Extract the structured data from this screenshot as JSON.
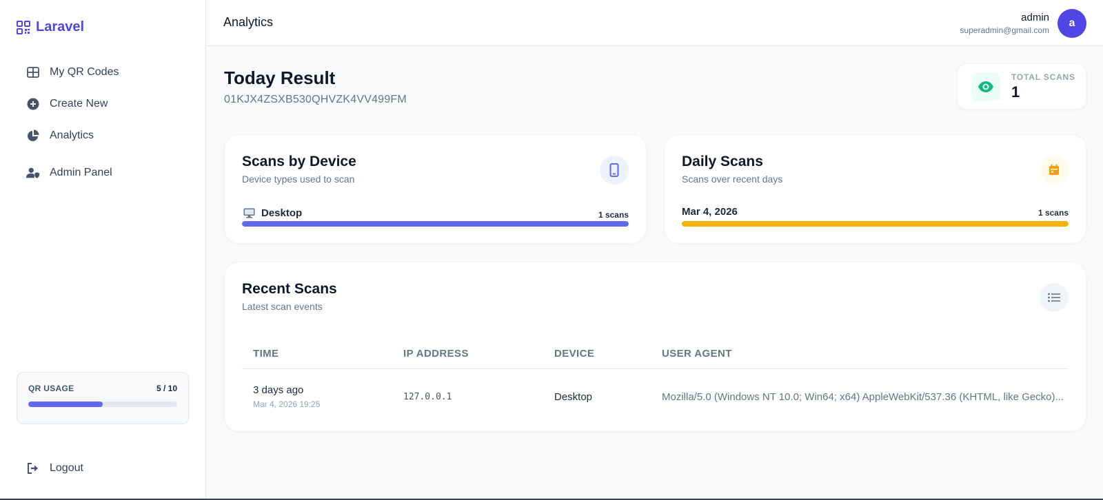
{
  "brand": {
    "name": "Laravel",
    "icon": "qr-code-icon"
  },
  "sidebar": {
    "items": [
      {
        "label": "My QR Codes",
        "icon": "grid-icon"
      },
      {
        "label": "Create New",
        "icon": "plus-circle-icon"
      },
      {
        "label": "Analytics",
        "icon": "pie-chart-icon"
      },
      {
        "label": "Admin Panel",
        "icon": "user-shield-icon"
      }
    ],
    "usage": {
      "title": "QR USAGE",
      "count": "5 / 10",
      "used": 5,
      "limit": 10
    },
    "logout": {
      "label": "Logout",
      "icon": "logout-icon"
    }
  },
  "header": {
    "title": "Analytics",
    "user": {
      "name": "admin",
      "email": "superadmin@gmail.com",
      "avatar_letter": "a"
    }
  },
  "result": {
    "title": "Today Result",
    "id": "01KJX4ZSXB530QHVZK4VV499FM"
  },
  "total_scans": {
    "label": "TOTAL SCANS",
    "value": "1",
    "icon": "eye-icon",
    "color": "#10b981"
  },
  "device_card": {
    "title": "Scans by Device",
    "subtitle": "Device types used to scan",
    "icon": "mobile-icon",
    "accent": "#6366f1",
    "rows": [
      {
        "label": "Desktop",
        "count": "1 scans",
        "fraction": 1.0,
        "icon": "desktop-icon"
      }
    ]
  },
  "daily_card": {
    "title": "Daily Scans",
    "subtitle": "Scans over recent days",
    "icon": "calendar-icon",
    "accent": "#f5b000",
    "rows": [
      {
        "label": "Mar 4, 2026",
        "count": "1 scans",
        "fraction": 1.0
      }
    ]
  },
  "recent": {
    "title": "Recent Scans",
    "subtitle": "Latest scan events",
    "icon": "list-icon",
    "columns": [
      "TIME",
      "IP ADDRESS",
      "DEVICE",
      "USER AGENT"
    ],
    "rows": [
      {
        "time_relative": "3 days ago",
        "time_absolute": "Mar 4, 2026 19:25",
        "ip": "127.0.0.1",
        "device": "Desktop",
        "user_agent": "Mozilla/5.0 (Windows NT 10.0; Win64; x64) AppleWebKit/537.36 (KHTML, like Gecko)..."
      }
    ]
  }
}
